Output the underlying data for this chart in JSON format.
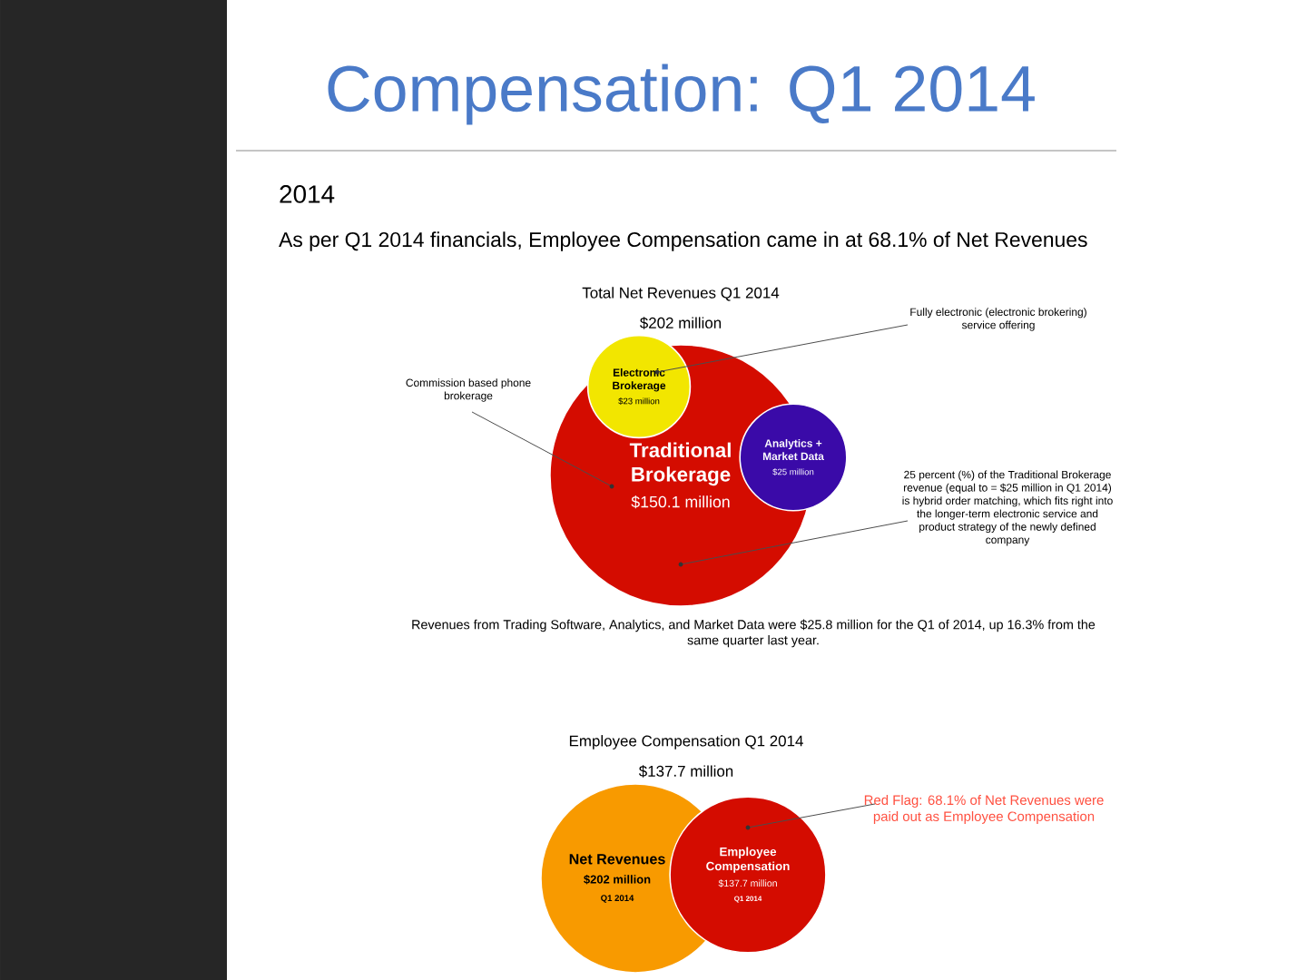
{
  "chart_data": [
    {
      "type": "other",
      "title": "Compensation: Q1 2014",
      "subtitle": "2014",
      "annotations": [
        "As per Q1 2014 financials, Employee Compensation came in at 68.1% of Net Revenues"
      ]
    },
    {
      "type": "other",
      "title": "Total Net Revenues Q1 2014",
      "subtitle": "$202 million",
      "categories": [
        "Traditional Brokerage",
        "Electronic Brokerage",
        "Analytics + Market Data"
      ],
      "values": [
        150.1,
        23,
        25
      ],
      "value_labels": [
        "$150.1 million",
        "$23 million",
        "$25 million"
      ],
      "colors": [
        "#d40c00",
        "#f2e600",
        "#3a0aa8"
      ],
      "annotations": [
        {
          "text": "Commission based phone brokerage",
          "x": "Traditional Brokerage"
        },
        {
          "text": "Fully electronic (electronic brokering) service offering",
          "x": "Electronic Brokerage"
        },
        {
          "text": "25 percent (%) of the Traditional Brokerage revenue (equal to = $25 million in Q1 2014) is hybrid order matching, which fits right into the longer-term electronic service and product strategy of the newly defined company",
          "x": "Traditional Brokerage"
        },
        "Revenues from Trading Software, Analytics, and Market Data were $25.8 million for the Q1 of 2014, up 16.3% from the same quarter last year."
      ]
    },
    {
      "type": "other",
      "title": "Employee Compensation Q1 2014",
      "subtitle": "$137.7 million",
      "categories": [
        "Net Revenues",
        "Employee Compensation"
      ],
      "values": [
        202,
        137.7
      ],
      "value_labels": [
        "$202 million",
        "$137.7 million"
      ],
      "colors": [
        "#f89a00",
        "#d40c00"
      ],
      "annotations": [
        {
          "text": "Q1 2014",
          "x": "Net Revenues"
        },
        {
          "text": "Q1 2014",
          "x": "Employee Compensation"
        },
        {
          "text": "Red Flag: 68.1% of Net Revenues were paid out as Employee Compensation",
          "x": "Employee Compensation"
        }
      ]
    }
  ]
}
